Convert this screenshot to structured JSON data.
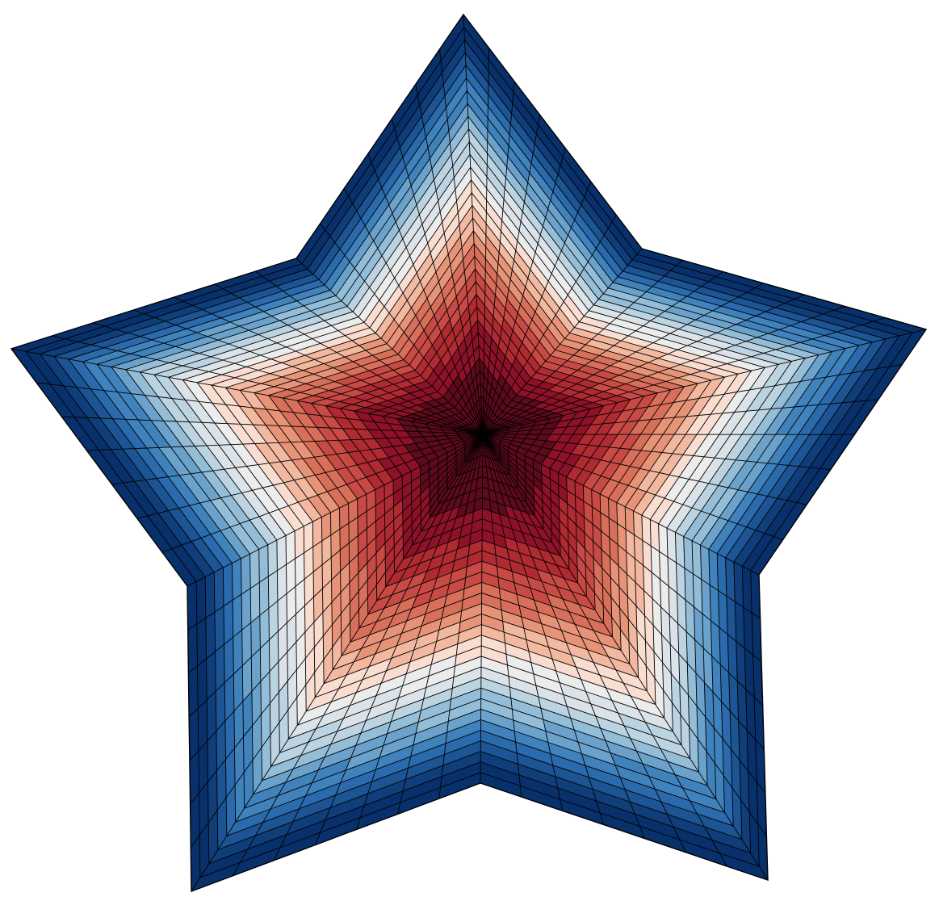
{
  "figure": {
    "subject": "star-shaped-mesh",
    "palette": "diverging-red-blue",
    "palette_colors": [
      "#08306b",
      "#0f3e7a",
      "#1c5494",
      "#2a6aad",
      "#3f82bc",
      "#6aa2cc",
      "#94bdd8",
      "#bcd3e2",
      "#dbe3e9",
      "#ececec",
      "#f8ddd0",
      "#f2b8a0",
      "#e79377",
      "#d86f5a",
      "#c84a45",
      "#b02a32",
      "#8e1227",
      "#5c0a1c"
    ],
    "mesh_line_color": "#000000",
    "mesh_rings": 33,
    "mesh_divisions_per_edge": 7,
    "background_color": "#ffffff"
  }
}
